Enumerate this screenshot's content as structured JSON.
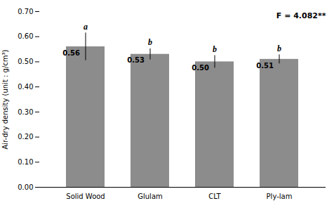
{
  "chart_data": {
    "type": "bar",
    "categories": [
      "Solid Wood",
      "Glulam",
      "CLT",
      "Ply-lam"
    ],
    "values": [
      0.56,
      0.53,
      0.5,
      0.51
    ],
    "value_labels": [
      "0.56",
      "0.53",
      "0.50",
      "0.51"
    ],
    "errors": [
      0.055,
      0.022,
      0.025,
      0.018
    ],
    "superscripts": [
      "a",
      "b",
      "b",
      "b"
    ],
    "annotation": "F = 4.082**",
    "color": "#8c8c8c",
    "ylabel": "Air-dry density (unit : g/cm³)",
    "ylim": [
      0.0,
      0.7
    ],
    "yticks": [
      {
        "value": 0.0,
        "label": "0.00"
      },
      {
        "value": 0.1,
        "label": "0.10"
      },
      {
        "value": 0.2,
        "label": "0.20"
      },
      {
        "value": 0.3,
        "label": "0.30"
      },
      {
        "value": 0.4,
        "label": "0.40"
      },
      {
        "value": 0.5,
        "label": "0.50"
      },
      {
        "value": 0.6,
        "label": "0.60"
      },
      {
        "value": 0.7,
        "label": "0.70"
      }
    ],
    "data_labels": true,
    "grid": false
  }
}
